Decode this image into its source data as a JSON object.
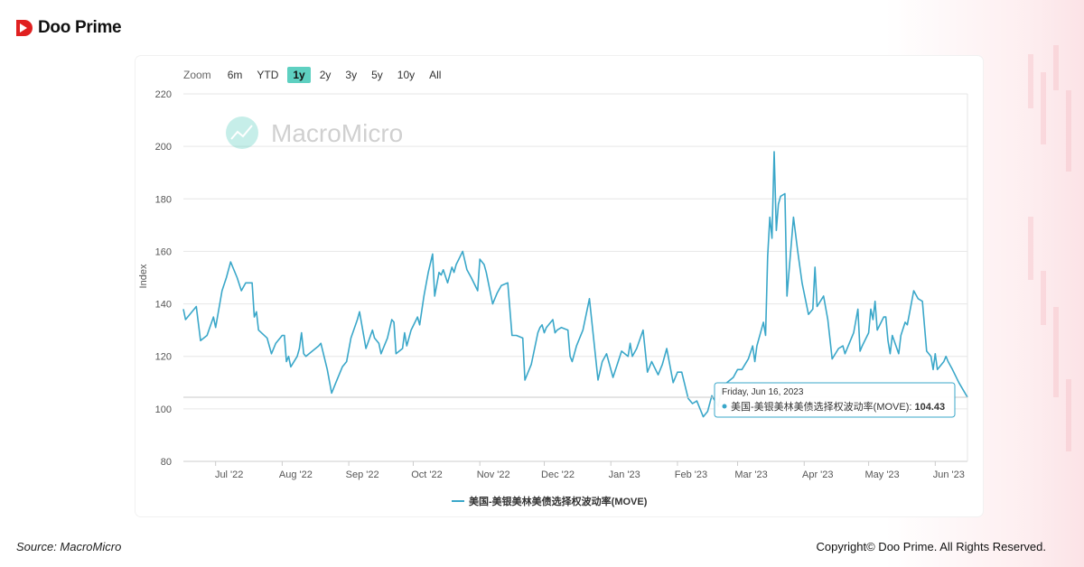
{
  "brand": {
    "name": "Doo Prime",
    "logo": "doo-prime-logo-mark",
    "accent": "#e02020"
  },
  "zoom": {
    "label": "Zoom",
    "options": [
      "6m",
      "YTD",
      "1y",
      "2y",
      "3y",
      "5y",
      "10y",
      "All"
    ],
    "active": "1y",
    "active_color": "#5ed0c1"
  },
  "watermark": {
    "text": "MacroMicro",
    "icon": "macromicro-logo-icon"
  },
  "tooltip": {
    "date": "Friday, Jun 16, 2023",
    "series": "美国-美银美林美债选择权波动率(MOVE)",
    "value": "104.43"
  },
  "source": "Source: MacroMicro",
  "copyright": "Copyright© Doo Prime. All Rights Reserved.",
  "chart_data": {
    "type": "line",
    "title": "",
    "xlabel": "",
    "ylabel": "Index",
    "ylim": [
      80,
      220
    ],
    "yticks": [
      80,
      100,
      120,
      140,
      160,
      180,
      200,
      220
    ],
    "xlim": [
      "2022-06-16",
      "2023-06-16"
    ],
    "xticks": [
      {
        "date": "2022-07-01",
        "label": "Jul '22"
      },
      {
        "date": "2022-08-01",
        "label": "Aug '22"
      },
      {
        "date": "2022-09-01",
        "label": "Sep '22"
      },
      {
        "date": "2022-10-01",
        "label": "Oct '22"
      },
      {
        "date": "2022-11-01",
        "label": "Nov '22"
      },
      {
        "date": "2022-12-01",
        "label": "Dec '22"
      },
      {
        "date": "2023-01-01",
        "label": "Jan '23"
      },
      {
        "date": "2023-02-01",
        "label": "Feb '23"
      },
      {
        "date": "2023-03-01",
        "label": "Mar '23"
      },
      {
        "date": "2023-04-01",
        "label": "Apr '23"
      },
      {
        "date": "2023-05-01",
        "label": "May '23"
      },
      {
        "date": "2023-06-01",
        "label": "Jun '23"
      }
    ],
    "grid": true,
    "legend_position": "bottom-center",
    "series": [
      {
        "name": "美国-美银美林美债选择权波动率(MOVE)",
        "color": "#3aa7c9",
        "points": [
          [
            "2022-06-16",
            138
          ],
          [
            "2022-06-17",
            134
          ],
          [
            "2022-06-22",
            139
          ],
          [
            "2022-06-24",
            126
          ],
          [
            "2022-06-27",
            128
          ],
          [
            "2022-06-30",
            135
          ],
          [
            "2022-07-01",
            131
          ],
          [
            "2022-07-04",
            145
          ],
          [
            "2022-07-06",
            150
          ],
          [
            "2022-07-08",
            156
          ],
          [
            "2022-07-11",
            150
          ],
          [
            "2022-07-13",
            145
          ],
          [
            "2022-07-15",
            148
          ],
          [
            "2022-07-18",
            148
          ],
          [
            "2022-07-19",
            135
          ],
          [
            "2022-07-20",
            137
          ],
          [
            "2022-07-21",
            130
          ],
          [
            "2022-07-25",
            127
          ],
          [
            "2022-07-27",
            121
          ],
          [
            "2022-07-29",
            125
          ],
          [
            "2022-08-01",
            128
          ],
          [
            "2022-08-02",
            128
          ],
          [
            "2022-08-03",
            118
          ],
          [
            "2022-08-04",
            120
          ],
          [
            "2022-08-05",
            116
          ],
          [
            "2022-08-08",
            120
          ],
          [
            "2022-08-09",
            123
          ],
          [
            "2022-08-10",
            129
          ],
          [
            "2022-08-11",
            121
          ],
          [
            "2022-08-12",
            120
          ],
          [
            "2022-08-15",
            122
          ],
          [
            "2022-08-18",
            124
          ],
          [
            "2022-08-19",
            125
          ],
          [
            "2022-08-22",
            115
          ],
          [
            "2022-08-24",
            106
          ],
          [
            "2022-08-26",
            110
          ],
          [
            "2022-08-29",
            116
          ],
          [
            "2022-08-31",
            118
          ],
          [
            "2022-09-02",
            127
          ],
          [
            "2022-09-05",
            134
          ],
          [
            "2022-09-06",
            137
          ],
          [
            "2022-09-09",
            123
          ],
          [
            "2022-09-12",
            130
          ],
          [
            "2022-09-13",
            127
          ],
          [
            "2022-09-15",
            125
          ],
          [
            "2022-09-16",
            121
          ],
          [
            "2022-09-19",
            127
          ],
          [
            "2022-09-21",
            134
          ],
          [
            "2022-09-22",
            133
          ],
          [
            "2022-09-23",
            121
          ],
          [
            "2022-09-26",
            123
          ],
          [
            "2022-09-27",
            129
          ],
          [
            "2022-09-28",
            124
          ],
          [
            "2022-09-30",
            130
          ],
          [
            "2022-10-03",
            135
          ],
          [
            "2022-10-04",
            132
          ],
          [
            "2022-10-06",
            143
          ],
          [
            "2022-10-08",
            152
          ],
          [
            "2022-10-10",
            159
          ],
          [
            "2022-10-11",
            143
          ],
          [
            "2022-10-13",
            152
          ],
          [
            "2022-10-14",
            151
          ],
          [
            "2022-10-15",
            153
          ],
          [
            "2022-10-17",
            148
          ],
          [
            "2022-10-19",
            154
          ],
          [
            "2022-10-20",
            152
          ],
          [
            "2022-10-21",
            155
          ],
          [
            "2022-10-24",
            160
          ],
          [
            "2022-10-26",
            153
          ],
          [
            "2022-10-28",
            150
          ],
          [
            "2022-10-31",
            145
          ],
          [
            "2022-11-01",
            157
          ],
          [
            "2022-11-03",
            155
          ],
          [
            "2022-11-04",
            152
          ],
          [
            "2022-11-07",
            140
          ],
          [
            "2022-11-09",
            144
          ],
          [
            "2022-11-11",
            147
          ],
          [
            "2022-11-14",
            148
          ],
          [
            "2022-11-16",
            128
          ],
          [
            "2022-11-18",
            128
          ],
          [
            "2022-11-21",
            127
          ],
          [
            "2022-11-22",
            111
          ],
          [
            "2022-11-25",
            117
          ],
          [
            "2022-11-28",
            129
          ],
          [
            "2022-11-29",
            131
          ],
          [
            "2022-11-30",
            132
          ],
          [
            "2022-12-01",
            129
          ],
          [
            "2022-12-02",
            131
          ],
          [
            "2022-12-05",
            134
          ],
          [
            "2022-12-06",
            129
          ],
          [
            "2022-12-07",
            130
          ],
          [
            "2022-12-09",
            131
          ],
          [
            "2022-12-12",
            130
          ],
          [
            "2022-12-13",
            120
          ],
          [
            "2022-12-14",
            118
          ],
          [
            "2022-12-16",
            124
          ],
          [
            "2022-12-19",
            130
          ],
          [
            "2022-12-22",
            142
          ],
          [
            "2022-12-26",
            111
          ],
          [
            "2022-12-28",
            118
          ],
          [
            "2022-12-30",
            121
          ],
          [
            "2023-01-02",
            112
          ],
          [
            "2023-01-04",
            117
          ],
          [
            "2023-01-06",
            122
          ],
          [
            "2023-01-09",
            120
          ],
          [
            "2023-01-10",
            125
          ],
          [
            "2023-01-11",
            120
          ],
          [
            "2023-01-13",
            123
          ],
          [
            "2023-01-16",
            130
          ],
          [
            "2023-01-18",
            114
          ],
          [
            "2023-01-20",
            118
          ],
          [
            "2023-01-23",
            113
          ],
          [
            "2023-01-25",
            117
          ],
          [
            "2023-01-27",
            123
          ],
          [
            "2023-01-30",
            110
          ],
          [
            "2023-02-01",
            114
          ],
          [
            "2023-02-03",
            114
          ],
          [
            "2023-02-06",
            104
          ],
          [
            "2023-02-08",
            102
          ],
          [
            "2023-02-10",
            103
          ],
          [
            "2023-02-13",
            97
          ],
          [
            "2023-02-15",
            99
          ],
          [
            "2023-02-17",
            105
          ],
          [
            "2023-02-20",
            101
          ],
          [
            "2023-02-22",
            109
          ],
          [
            "2023-02-24",
            110
          ],
          [
            "2023-02-27",
            112
          ],
          [
            "2023-03-01",
            115
          ],
          [
            "2023-03-03",
            115
          ],
          [
            "2023-03-06",
            119
          ],
          [
            "2023-03-08",
            124
          ],
          [
            "2023-03-09",
            118
          ],
          [
            "2023-03-10",
            124
          ],
          [
            "2023-03-13",
            133
          ],
          [
            "2023-03-14",
            128
          ],
          [
            "2023-03-15",
            158
          ],
          [
            "2023-03-16",
            173
          ],
          [
            "2023-03-17",
            165
          ],
          [
            "2023-03-18",
            198
          ],
          [
            "2023-03-19",
            168
          ],
          [
            "2023-03-20",
            178
          ],
          [
            "2023-03-21",
            181
          ],
          [
            "2023-03-23",
            182
          ],
          [
            "2023-03-24",
            143
          ],
          [
            "2023-03-27",
            173
          ],
          [
            "2023-03-29",
            160
          ],
          [
            "2023-03-31",
            148
          ],
          [
            "2023-04-03",
            136
          ],
          [
            "2023-04-05",
            138
          ],
          [
            "2023-04-06",
            154
          ],
          [
            "2023-04-07",
            139
          ],
          [
            "2023-04-10",
            143
          ],
          [
            "2023-04-12",
            134
          ],
          [
            "2023-04-14",
            119
          ],
          [
            "2023-04-17",
            123
          ],
          [
            "2023-04-19",
            124
          ],
          [
            "2023-04-20",
            121
          ],
          [
            "2023-04-24",
            129
          ],
          [
            "2023-04-26",
            138
          ],
          [
            "2023-04-27",
            122
          ],
          [
            "2023-04-28",
            124
          ],
          [
            "2023-05-01",
            129
          ],
          [
            "2023-05-02",
            138
          ],
          [
            "2023-05-03",
            134
          ],
          [
            "2023-05-04",
            141
          ],
          [
            "2023-05-05",
            130
          ],
          [
            "2023-05-08",
            135
          ],
          [
            "2023-05-09",
            135
          ],
          [
            "2023-05-10",
            126
          ],
          [
            "2023-05-11",
            121
          ],
          [
            "2023-05-12",
            128
          ],
          [
            "2023-05-15",
            121
          ],
          [
            "2023-05-16",
            128
          ],
          [
            "2023-05-18",
            133
          ],
          [
            "2023-05-19",
            132
          ],
          [
            "2023-05-22",
            145
          ],
          [
            "2023-05-24",
            142
          ],
          [
            "2023-05-26",
            141
          ],
          [
            "2023-05-28",
            122
          ],
          [
            "2023-05-30",
            120
          ],
          [
            "2023-05-31",
            115
          ],
          [
            "2023-06-01",
            121
          ],
          [
            "2023-06-02",
            115
          ],
          [
            "2023-06-05",
            118
          ],
          [
            "2023-06-06",
            120
          ],
          [
            "2023-06-07",
            118
          ],
          [
            "2023-06-09",
            115
          ],
          [
            "2023-06-12",
            110
          ],
          [
            "2023-06-16",
            104.43
          ]
        ]
      }
    ]
  }
}
